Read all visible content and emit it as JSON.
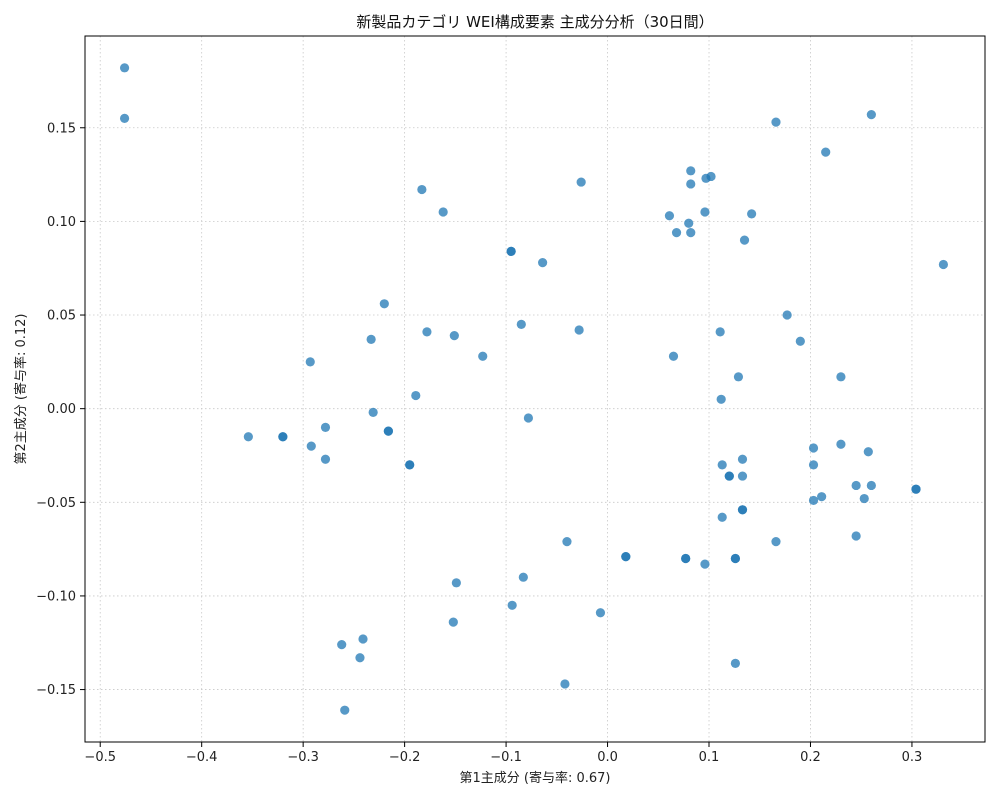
{
  "chart_data": {
    "type": "scatter",
    "title": "新製品カテゴリ WEI構成要素 主成分分析（30日間）",
    "xlabel": "第1主成分 (寄与率: 0.67)",
    "ylabel": "第2主成分 (寄与率: 0.12)",
    "xlim": [
      -0.515,
      0.372
    ],
    "ylim": [
      -0.178,
      0.199
    ],
    "xticks": [
      -0.5,
      -0.4,
      -0.3,
      -0.2,
      -0.1,
      0.0,
      0.1,
      0.2,
      0.3
    ],
    "xtick_labels": [
      "−0.5",
      "−0.4",
      "−0.3",
      "−0.2",
      "−0.1",
      "0.0",
      "0.1",
      "0.2",
      "0.3"
    ],
    "yticks": [
      -0.15,
      -0.1,
      -0.05,
      0.0,
      0.05,
      0.1,
      0.15
    ],
    "ytick_labels": [
      "−0.15",
      "−0.10",
      "−0.05",
      "0.00",
      "0.05",
      "0.10",
      "0.15"
    ],
    "grid": true,
    "grid_style": "dotted",
    "point_color": "#1f77b4",
    "point_opacity": 0.75,
    "points": [
      [
        -0.476,
        0.182
      ],
      [
        -0.476,
        0.155
      ],
      [
        -0.183,
        0.117
      ],
      [
        -0.162,
        0.105
      ],
      [
        -0.026,
        0.121
      ],
      [
        -0.095,
        0.084
      ],
      [
        -0.095,
        0.084
      ],
      [
        -0.064,
        0.078
      ],
      [
        -0.22,
        0.056
      ],
      [
        -0.178,
        0.041
      ],
      [
        -0.151,
        0.039
      ],
      [
        -0.233,
        0.037
      ],
      [
        -0.085,
        0.045
      ],
      [
        -0.028,
        0.042
      ],
      [
        -0.123,
        0.028
      ],
      [
        -0.293,
        0.025
      ],
      [
        -0.189,
        0.007
      ],
      [
        -0.231,
        -0.002
      ],
      [
        -0.078,
        -0.005
      ],
      [
        -0.354,
        -0.015
      ],
      [
        -0.32,
        -0.015
      ],
      [
        -0.32,
        -0.015
      ],
      [
        -0.278,
        -0.01
      ],
      [
        -0.216,
        -0.012
      ],
      [
        -0.216,
        -0.012
      ],
      [
        -0.292,
        -0.02
      ],
      [
        -0.278,
        -0.027
      ],
      [
        -0.195,
        -0.03
      ],
      [
        -0.195,
        -0.03
      ],
      [
        -0.04,
        -0.071
      ],
      [
        0.018,
        -0.079
      ],
      [
        0.018,
        -0.079
      ],
      [
        -0.083,
        -0.09
      ],
      [
        -0.149,
        -0.093
      ],
      [
        -0.094,
        -0.105
      ],
      [
        -0.007,
        -0.109
      ],
      [
        -0.152,
        -0.114
      ],
      [
        -0.262,
        -0.126
      ],
      [
        -0.241,
        -0.123
      ],
      [
        -0.244,
        -0.133
      ],
      [
        -0.042,
        -0.147
      ],
      [
        -0.259,
        -0.161
      ],
      [
        0.082,
        0.127
      ],
      [
        0.082,
        0.12
      ],
      [
        0.097,
        0.123
      ],
      [
        0.102,
        0.124
      ],
      [
        0.061,
        0.103
      ],
      [
        0.08,
        0.099
      ],
      [
        0.096,
        0.105
      ],
      [
        0.142,
        0.104
      ],
      [
        0.068,
        0.094
      ],
      [
        0.082,
        0.094
      ],
      [
        0.135,
        0.09
      ],
      [
        0.166,
        0.153
      ],
      [
        0.26,
        0.157
      ],
      [
        0.215,
        0.137
      ],
      [
        0.331,
        0.077
      ],
      [
        0.177,
        0.05
      ],
      [
        0.111,
        0.041
      ],
      [
        0.19,
        0.036
      ],
      [
        0.065,
        0.028
      ],
      [
        0.129,
        0.017
      ],
      [
        0.23,
        0.017
      ],
      [
        0.112,
        0.005
      ],
      [
        0.203,
        -0.021
      ],
      [
        0.23,
        -0.019
      ],
      [
        0.257,
        -0.023
      ],
      [
        0.133,
        -0.027
      ],
      [
        0.113,
        -0.03
      ],
      [
        0.203,
        -0.03
      ],
      [
        0.12,
        -0.036
      ],
      [
        0.12,
        -0.036
      ],
      [
        0.133,
        -0.036
      ],
      [
        0.245,
        -0.041
      ],
      [
        0.26,
        -0.041
      ],
      [
        0.304,
        -0.043
      ],
      [
        0.304,
        -0.043
      ],
      [
        0.211,
        -0.047
      ],
      [
        0.203,
        -0.049
      ],
      [
        0.253,
        -0.048
      ],
      [
        0.133,
        -0.054
      ],
      [
        0.133,
        -0.054
      ],
      [
        0.113,
        -0.058
      ],
      [
        0.245,
        -0.068
      ],
      [
        0.166,
        -0.071
      ],
      [
        0.077,
        -0.08
      ],
      [
        0.077,
        -0.08
      ],
      [
        0.126,
        -0.08
      ],
      [
        0.126,
        -0.08
      ],
      [
        0.096,
        -0.083
      ],
      [
        0.126,
        -0.136
      ]
    ]
  }
}
